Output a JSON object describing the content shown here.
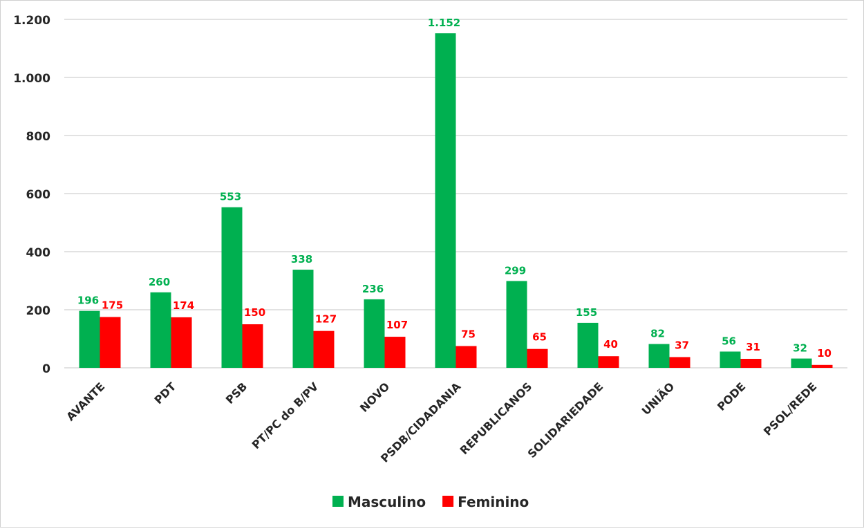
{
  "chart_data": {
    "type": "bar",
    "title": "",
    "xlabel": "",
    "ylabel": "",
    "categories": [
      "AVANTE",
      "PDT",
      "PSB",
      "PT/PC do B/PV",
      "NOVO",
      "PSDB/CIDADANIA",
      "REPUBLICANOS",
      "SOLIDARIEDADE",
      "UNIÃO",
      "PODE",
      "PSOL/REDE"
    ],
    "series": [
      {
        "name": "Masculino",
        "color": "#00b050",
        "values": [
          196,
          260,
          553,
          338,
          236,
          1152,
          299,
          155,
          82,
          56,
          32
        ],
        "labels": [
          "196",
          "260",
          "553",
          "338",
          "236",
          "1.152",
          "299",
          "155",
          "82",
          "56",
          "32"
        ]
      },
      {
        "name": "Feminino",
        "color": "#ff0000",
        "values": [
          175,
          174,
          150,
          127,
          107,
          75,
          65,
          40,
          37,
          31,
          10
        ],
        "labels": [
          "175",
          "174",
          "150",
          "127",
          "107",
          "75",
          "65",
          "40",
          "37",
          "31",
          "10"
        ]
      }
    ],
    "ylim": [
      0,
      1200
    ],
    "yticks": [
      0,
      200,
      400,
      600,
      800,
      1000,
      1200
    ],
    "ytick_labels": [
      "0",
      "200",
      "400",
      "600",
      "800",
      "1.000",
      "1.200"
    ],
    "grid": true,
    "legend_position": "bottom"
  }
}
